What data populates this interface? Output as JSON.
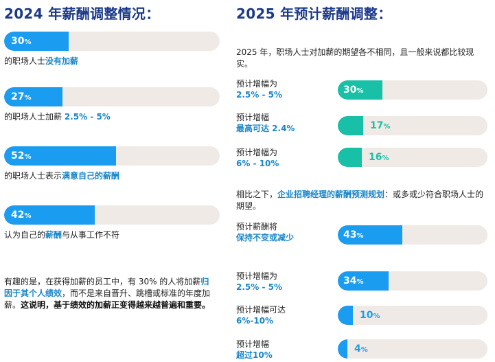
{
  "left": {
    "title": "2024 年薪酬调整情况：",
    "items": [
      {
        "value": "30",
        "unit": "%",
        "pct": 30,
        "caption_pre": "的职场人士",
        "caption_hl": "没有加薪",
        "caption_post": ""
      },
      {
        "value": "27",
        "unit": "%",
        "pct": 27,
        "caption_pre": "的职场人士加薪 ",
        "caption_hl": "2.5% - 5%",
        "caption_post": ""
      },
      {
        "value": "52",
        "unit": "%",
        "pct": 52,
        "caption_pre": "的职场人士表示",
        "caption_hl": "满意自己的薪酬",
        "caption_post": ""
      },
      {
        "value": "42",
        "unit": "%",
        "pct": 42,
        "caption_pre": "认为自己的",
        "caption_hl": "薪酬",
        "caption_post": "与从事工作不符"
      }
    ],
    "para": {
      "t1": "有趣的是，在获得加薪的员工中，有 30% 的人将加薪",
      "t2": "归因于其个人绩效",
      "t3": "，而不是来自晋升、跳槽或标准的年度加薪。",
      "t4": "这说明，基于绩效的加薪正变得越来越普遍和重要。"
    }
  },
  "right": {
    "title": "2025 年预计薪酬调整：",
    "intro": "2025 年，职场人士对加薪的期望各不相同，且一般来说都比较现实。",
    "group1": [
      {
        "label_line1": "预计增幅为",
        "label_line2": "2.5% - 5%",
        "value": "30",
        "unit": "%",
        "pct": 30,
        "color": "#17c0a6"
      },
      {
        "label_line1": "预计增幅",
        "label_line2": "最高可达 2.4%",
        "value": "17",
        "unit": "%",
        "pct": 17,
        "color": "#17c0a6"
      },
      {
        "label_line1": "预计增幅为",
        "label_line2": "6% - 10%",
        "value": "16",
        "unit": "%",
        "pct": 16,
        "color": "#17c0a6"
      }
    ],
    "compare": {
      "pre": "相比之下，",
      "hl": "企业招聘经理的薪酬预测规划",
      "post": "：或多或少符合职场人士的期望。"
    },
    "group2": [
      {
        "label_line1": "预计薪酬将",
        "label_line2": "保持不变或减少",
        "value": "43",
        "unit": "%",
        "pct": 43,
        "color": "#1a9cf0"
      },
      {
        "label_line1": "预计增幅为",
        "label_line2": "2.5% - 5%",
        "value": "34",
        "unit": "%",
        "pct": 34,
        "color": "#1a9cf0"
      },
      {
        "label_line1": "预计增幅可达",
        "label_line2": "6%-10%",
        "value": "10",
        "unit": "%",
        "pct": 10,
        "color": "#1a9cf0"
      },
      {
        "label_line1": "预计增幅",
        "label_line2": "超过10%",
        "value": "4",
        "unit": "%",
        "pct": 4,
        "color": "#1a9cf0"
      }
    ]
  }
}
